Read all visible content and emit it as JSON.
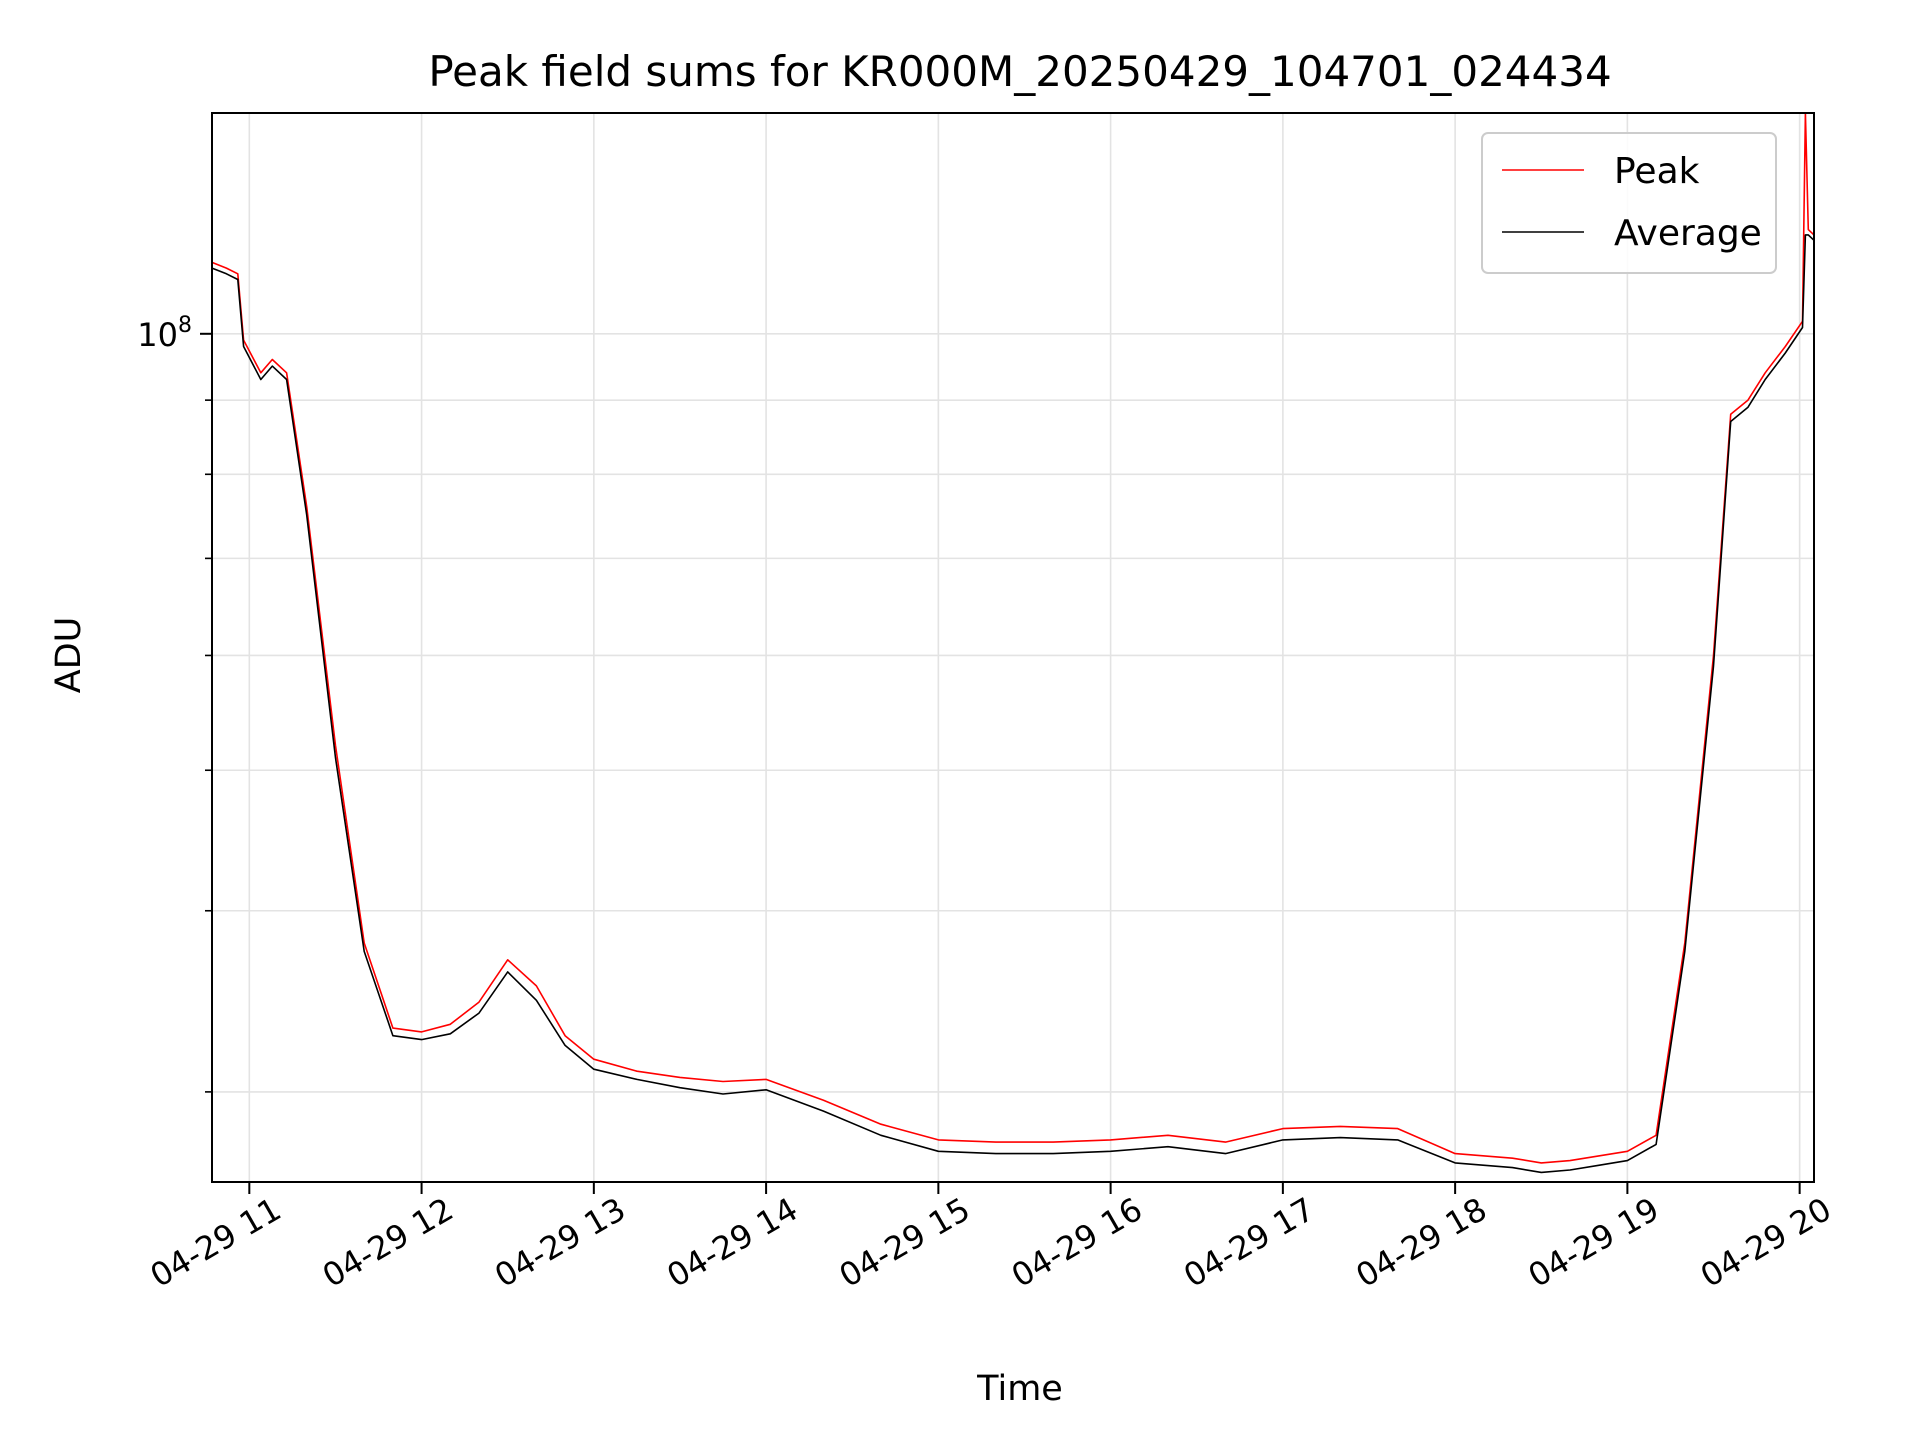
{
  "chart_data": {
    "type": "line",
    "title": "Peak field sums for KR000M_20250429_104701_024434",
    "xlabel": "Time",
    "ylabel": "ADU",
    "yscale": "log",
    "grid": true,
    "legend_position": "top-right",
    "x_ticks": [
      "04-29 11",
      "04-29 12",
      "04-29 13",
      "04-29 14",
      "04-29 15",
      "04-29 16",
      "04-29 17",
      "04-29 18",
      "04-29 19",
      "04-29 20"
    ],
    "y_tick_major_label": "10^8",
    "y_tick_major_value": 100000000,
    "xlim": [
      "2025-04-29 10:47",
      "2025-04-29 20:05"
    ],
    "ylim": [
      26000000,
      142000000
    ],
    "series": [
      {
        "name": "Peak",
        "color": "#ff0000",
        "x": [
          "2025-04-29 10:47",
          "2025-04-29 10:52",
          "2025-04-29 10:56",
          "2025-04-29 10:58",
          "2025-04-29 11:04",
          "2025-04-29 11:08",
          "2025-04-29 11:13",
          "2025-04-29 11:20",
          "2025-04-29 11:30",
          "2025-04-29 11:40",
          "2025-04-29 11:50",
          "2025-04-29 12:00",
          "2025-04-29 12:10",
          "2025-04-29 12:20",
          "2025-04-29 12:30",
          "2025-04-29 12:40",
          "2025-04-29 12:50",
          "2025-04-29 13:00",
          "2025-04-29 13:15",
          "2025-04-29 13:30",
          "2025-04-29 13:45",
          "2025-04-29 14:00",
          "2025-04-29 14:20",
          "2025-04-29 14:40",
          "2025-04-29 15:00",
          "2025-04-29 15:20",
          "2025-04-29 15:40",
          "2025-04-29 16:00",
          "2025-04-29 16:20",
          "2025-04-29 16:40",
          "2025-04-29 17:00",
          "2025-04-29 17:20",
          "2025-04-29 17:40",
          "2025-04-29 18:00",
          "2025-04-29 18:20",
          "2025-04-29 18:30",
          "2025-04-29 18:40",
          "2025-04-29 18:50",
          "2025-04-29 19:00",
          "2025-04-29 19:10",
          "2025-04-29 19:20",
          "2025-04-29 19:30",
          "2025-04-29 19:36",
          "2025-04-29 19:42",
          "2025-04-29 19:48",
          "2025-04-29 19:55",
          "2025-04-29 20:01",
          "2025-04-29 20:02",
          "2025-04-29 20:03",
          "2025-04-29 20:05"
        ],
        "y": [
          112000000,
          111000000,
          110000000,
          99000000,
          94000000,
          96000000,
          94000000,
          76000000,
          52000000,
          38000000,
          33200000,
          33000000,
          33400000,
          34600000,
          37000000,
          35500000,
          32800000,
          31600000,
          31000000,
          30700000,
          30500000,
          30600000,
          29600000,
          28500000,
          27800000,
          27700000,
          27700000,
          27800000,
          28000000,
          27700000,
          28300000,
          28400000,
          28300000,
          27200000,
          27000000,
          26800000,
          26900000,
          27100000,
          27300000,
          28000000,
          38000000,
          60000000,
          88000000,
          90000000,
          94000000,
          98000000,
          102000000,
          142000000,
          118000000,
          117000000
        ]
      },
      {
        "name": "Average",
        "color": "#000000",
        "x": [
          "2025-04-29 10:47",
          "2025-04-29 10:52",
          "2025-04-29 10:56",
          "2025-04-29 10:58",
          "2025-04-29 11:04",
          "2025-04-29 11:08",
          "2025-04-29 11:13",
          "2025-04-29 11:20",
          "2025-04-29 11:30",
          "2025-04-29 11:40",
          "2025-04-29 11:50",
          "2025-04-29 12:00",
          "2025-04-29 12:10",
          "2025-04-29 12:20",
          "2025-04-29 12:30",
          "2025-04-29 12:40",
          "2025-04-29 12:50",
          "2025-04-29 13:00",
          "2025-04-29 13:15",
          "2025-04-29 13:30",
          "2025-04-29 13:45",
          "2025-04-29 14:00",
          "2025-04-29 14:20",
          "2025-04-29 14:40",
          "2025-04-29 15:00",
          "2025-04-29 15:20",
          "2025-04-29 15:40",
          "2025-04-29 16:00",
          "2025-04-29 16:20",
          "2025-04-29 16:40",
          "2025-04-29 17:00",
          "2025-04-29 17:20",
          "2025-04-29 17:40",
          "2025-04-29 18:00",
          "2025-04-29 18:20",
          "2025-04-29 18:30",
          "2025-04-29 18:40",
          "2025-04-29 18:50",
          "2025-04-29 19:00",
          "2025-04-29 19:10",
          "2025-04-29 19:20",
          "2025-04-29 19:30",
          "2025-04-29 19:36",
          "2025-04-29 19:42",
          "2025-04-29 19:48",
          "2025-04-29 19:55",
          "2025-04-29 20:01",
          "2025-04-29 20:02",
          "2025-04-29 20:03",
          "2025-04-29 20:05"
        ],
        "y": [
          111000000,
          110000000,
          109000000,
          98000000,
          93000000,
          95000000,
          93000000,
          75000000,
          51000000,
          37500000,
          32800000,
          32600000,
          32900000,
          34000000,
          36300000,
          34700000,
          32300000,
          31100000,
          30600000,
          30200000,
          29900000,
          30100000,
          29100000,
          28000000,
          27300000,
          27200000,
          27200000,
          27300000,
          27500000,
          27200000,
          27800000,
          27900000,
          27800000,
          26800000,
          26600000,
          26400000,
          26500000,
          26700000,
          26900000,
          27600000,
          37500000,
          59000000,
          87000000,
          89000000,
          93000000,
          97000000,
          101000000,
          117000000,
          117000000,
          116000000
        ]
      }
    ]
  }
}
